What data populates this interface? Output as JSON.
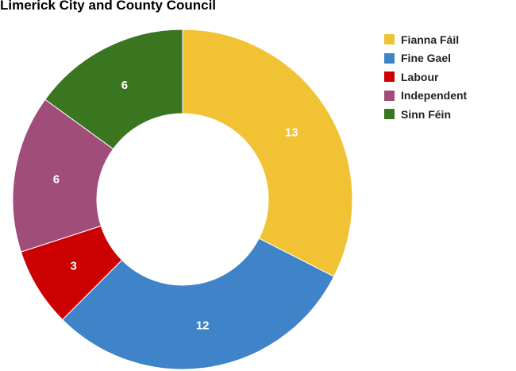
{
  "chart_data": {
    "type": "pie",
    "title": "Limerick City and County Council",
    "categories": [
      "Fianna Fáil",
      "Fine Gael",
      "Labour",
      "Independent",
      "Sinn Féin"
    ],
    "values": [
      13,
      12,
      3,
      6,
      6
    ],
    "colors": [
      "#f0c234",
      "#3f83c9",
      "#cc0000",
      "#a04d79",
      "#3a7520"
    ],
    "donut": true,
    "legend_position": "top-right"
  }
}
